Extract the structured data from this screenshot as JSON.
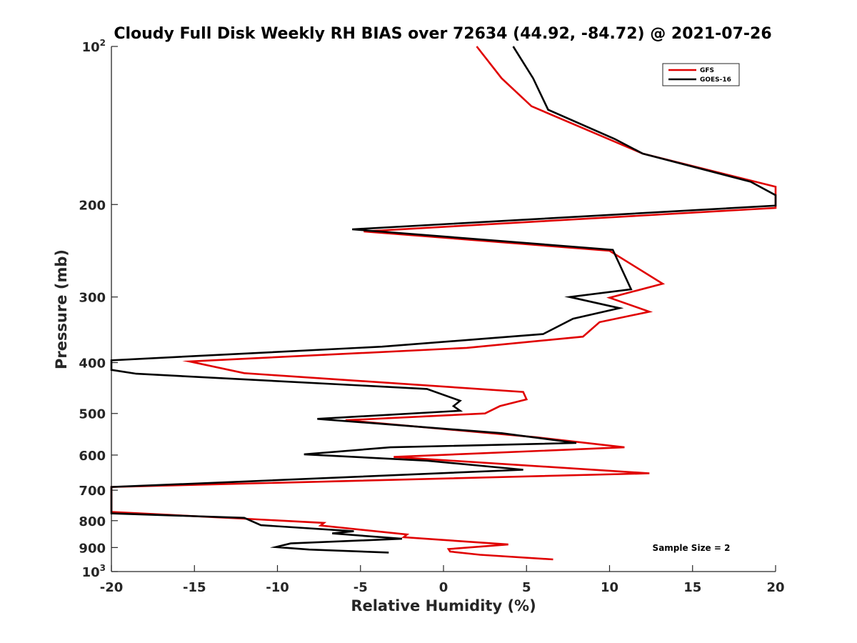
{
  "chart_data": {
    "type": "line",
    "title": "Cloudy Full Disk Weekly RH BIAS over 72634 (44.92, -84.72) @ 2021-07-26",
    "xlabel": "Relative Humidity (%)",
    "ylabel": "Pressure (mb)",
    "xlim": [
      -20,
      20
    ],
    "ylim": [
      100,
      1000
    ],
    "y_scale": "log",
    "y_reversed": true,
    "grid": false,
    "legend_position": "top-right",
    "x_ticks": [
      "-20",
      "-15",
      "-10",
      "-5",
      "0",
      "5",
      "10",
      "15",
      "20"
    ],
    "y_ticks": [
      {
        "value": 100,
        "base": "10",
        "exp": "2"
      },
      {
        "value": 200,
        "label": "200"
      },
      {
        "value": 300,
        "label": "300"
      },
      {
        "value": 400,
        "label": "400"
      },
      {
        "value": 500,
        "label": "500"
      },
      {
        "value": 600,
        "label": "600"
      },
      {
        "value": 700,
        "label": "700"
      },
      {
        "value": 800,
        "label": "800"
      },
      {
        "value": 900,
        "label": "900"
      },
      {
        "value": 1000,
        "base": "10",
        "exp": "3"
      }
    ],
    "annotation": "Sample Size = 2",
    "series": [
      {
        "name": "GFS",
        "color": "#e00000",
        "points": [
          [
            2.0,
            100
          ],
          [
            3.5,
            115
          ],
          [
            5.3,
            130
          ],
          [
            12.0,
            160
          ],
          [
            20.0,
            185
          ],
          [
            20.0,
            203
          ],
          [
            -4.8,
            225
          ],
          [
            10.0,
            245
          ],
          [
            13.2,
            283
          ],
          [
            10.0,
            301
          ],
          [
            12.4,
            320
          ],
          [
            9.4,
            335
          ],
          [
            8.4,
            357
          ],
          [
            1.4,
            375
          ],
          [
            -15.3,
            398
          ],
          [
            -12.0,
            419
          ],
          [
            4.8,
            455
          ],
          [
            5.0,
            470
          ],
          [
            3.4,
            484
          ],
          [
            2.5,
            500
          ],
          [
            -5.9,
            515
          ],
          [
            5.6,
            555
          ],
          [
            10.9,
            580
          ],
          [
            -3.0,
            605
          ],
          [
            12.4,
            650
          ],
          [
            -20.0,
            690
          ],
          [
            -20.0,
            770
          ],
          [
            -12.0,
            793
          ],
          [
            -7.2,
            808
          ],
          [
            -7.4,
            817
          ],
          [
            -2.2,
            850
          ],
          [
            -2.4,
            860
          ],
          [
            3.9,
            888
          ],
          [
            0.3,
            906
          ],
          [
            0.4,
            916
          ],
          [
            2.2,
            929
          ],
          [
            6.6,
            948
          ]
        ]
      },
      {
        "name": "GOES-16",
        "color": "#000000",
        "points": [
          [
            4.2,
            100
          ],
          [
            5.4,
            115
          ],
          [
            6.3,
            132
          ],
          [
            10.3,
            150
          ],
          [
            12.0,
            160
          ],
          [
            18.5,
            181
          ],
          [
            20.0,
            192
          ],
          [
            20.0,
            201
          ],
          [
            -5.5,
            223
          ],
          [
            10.2,
            244
          ],
          [
            11.3,
            290
          ],
          [
            7.6,
            300
          ],
          [
            10.6,
            315
          ],
          [
            7.8,
            330
          ],
          [
            6.0,
            353
          ],
          [
            -3.7,
            373
          ],
          [
            -20.0,
            396
          ],
          [
            -20.0,
            413
          ],
          [
            -18.5,
            420
          ],
          [
            -1.0,
            449
          ],
          [
            1.0,
            473
          ],
          [
            0.6,
            484
          ],
          [
            1.0,
            494
          ],
          [
            -7.6,
            512
          ],
          [
            3.5,
            545
          ],
          [
            8.0,
            569
          ],
          [
            -3.2,
            580
          ],
          [
            -8.4,
            598
          ],
          [
            -1.0,
            615
          ],
          [
            4.8,
            640
          ],
          [
            -15.0,
            680
          ],
          [
            -20.0,
            690
          ],
          [
            -20.0,
            775
          ],
          [
            -12.0,
            790
          ],
          [
            -11.0,
            816
          ],
          [
            -5.4,
            838
          ],
          [
            -6.7,
            846
          ],
          [
            -2.5,
            866
          ],
          [
            -9.2,
            884
          ],
          [
            -10.1,
            898
          ],
          [
            -8.1,
            908
          ],
          [
            -3.3,
            920
          ]
        ]
      }
    ]
  }
}
